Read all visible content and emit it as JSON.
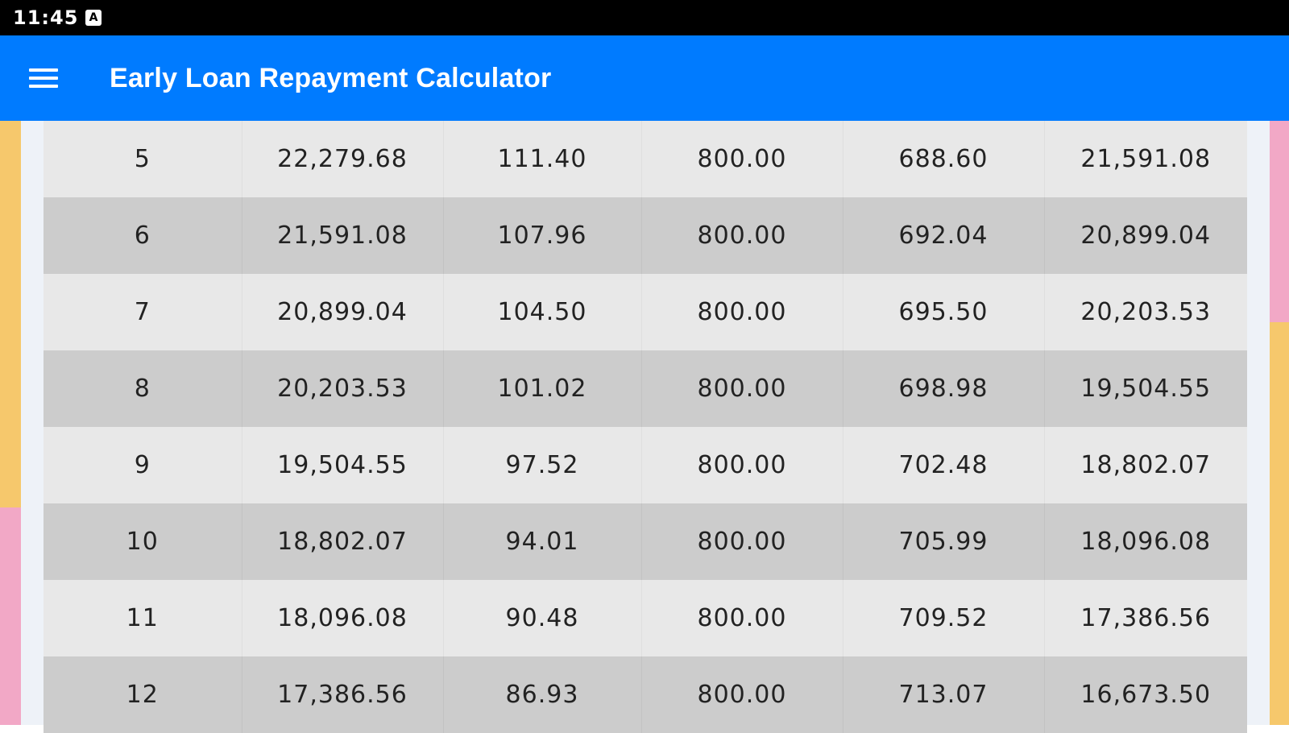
{
  "status_bar": {
    "time": "11:45",
    "notification_icon": "a-icon",
    "notification_glyph": "A"
  },
  "app_bar": {
    "title": "Early Loan Repayment Calculator",
    "menu_icon": "menu-icon",
    "background_color": "#007bff"
  },
  "schedule": {
    "rows": [
      [
        "5",
        "22,279.68",
        "111.40",
        "800.00",
        "688.60",
        "21,591.08"
      ],
      [
        "6",
        "21,591.08",
        "107.96",
        "800.00",
        "692.04",
        "20,899.04"
      ],
      [
        "7",
        "20,899.04",
        "104.50",
        "800.00",
        "695.50",
        "20,203.53"
      ],
      [
        "8",
        "20,203.53",
        "101.02",
        "800.00",
        "698.98",
        "19,504.55"
      ],
      [
        "9",
        "19,504.55",
        "97.52",
        "800.00",
        "702.48",
        "18,802.07"
      ],
      [
        "10",
        "18,802.07",
        "94.01",
        "800.00",
        "705.99",
        "18,096.08"
      ],
      [
        "11",
        "18,096.08",
        "90.48",
        "800.00",
        "709.52",
        "17,386.56"
      ],
      [
        "12",
        "17,386.56",
        "86.93",
        "800.00",
        "713.07",
        "16,673.50"
      ]
    ]
  }
}
